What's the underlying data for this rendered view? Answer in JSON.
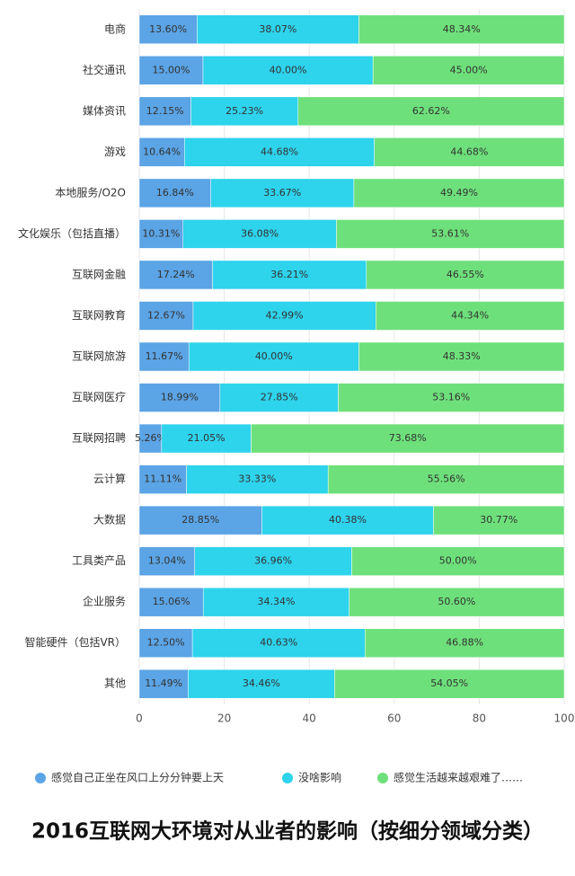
{
  "chart_data": {
    "type": "stacked-barh",
    "title": "2016互联网大环境对从业者的影响（按细分领域分类）",
    "categories": [
      "电商",
      "社交通讯",
      "媒体资讯",
      "游戏",
      "本地服务/O2O",
      "文化娱乐（包括直播）",
      "互联网金融",
      "互联网教育",
      "互联网旅游",
      "互联网医疗",
      "互联网招聘",
      "云计算",
      "大数据",
      "工具类产品",
      "企业服务",
      "智能硬件（包括VR）",
      "其他"
    ],
    "series": [
      {
        "name": "感觉自己正坐在风口上分分钟要上天",
        "color": "#5ba4e5",
        "values": [
          13.6,
          15,
          12.15,
          10.64,
          16.84,
          10.31,
          17.24,
          12.67,
          11.67,
          18.99,
          5.26,
          11.11,
          28.85,
          13.04,
          15.06,
          12.5,
          11.49
        ],
        "value_labels": [
          "13.60%",
          "15.00%",
          "12.15%",
          "10.64%",
          "16.84%",
          "10.31%",
          "17.24%",
          "12.67%",
          "11.67%",
          "18.99%",
          "5.26%",
          "11.11%",
          "28.85%",
          "13.04%",
          "15.06%",
          "12.50%",
          "11.49%"
        ]
      },
      {
        "name": "没啥影响",
        "color": "#2ed3ec",
        "values": [
          38.07,
          40,
          25.23,
          44.68,
          33.67,
          36.08,
          36.21,
          42.99,
          40,
          27.85,
          21.05,
          33.33,
          40.38,
          36.96,
          34.34,
          40.63,
          34.46
        ],
        "value_labels": [
          "38.07%",
          "40.00%",
          "25.23%",
          "44.68%",
          "33.67%",
          "36.08%",
          "36.21%",
          "42.99%",
          "40.00%",
          "27.85%",
          "21.05%",
          "33.33%",
          "40.38%",
          "36.96%",
          "34.34%",
          "40.63%",
          "34.46%"
        ]
      },
      {
        "name": "感觉生活越来越艰难了……",
        "color": "#6ee07b",
        "values": [
          48.34,
          45,
          62.62,
          44.68,
          49.49,
          53.61,
          46.55,
          44.34,
          48.33,
          53.16,
          73.68,
          55.56,
          30.77,
          50,
          50.6,
          46.88,
          54.05
        ],
        "value_labels": [
          "48.34%",
          "45.00%",
          "62.62%",
          "44.68%",
          "49.49%",
          "53.61%",
          "46.55%",
          "44.34%",
          "48.33%",
          "53.16%",
          "73.68%",
          "55.56%",
          "30.77%",
          "50.00%",
          "50.60%",
          "46.88%",
          "54.05%"
        ]
      }
    ],
    "xlim": [
      0,
      100
    ],
    "xticks": [
      0,
      20,
      40,
      60,
      80,
      100
    ],
    "grid": true
  }
}
